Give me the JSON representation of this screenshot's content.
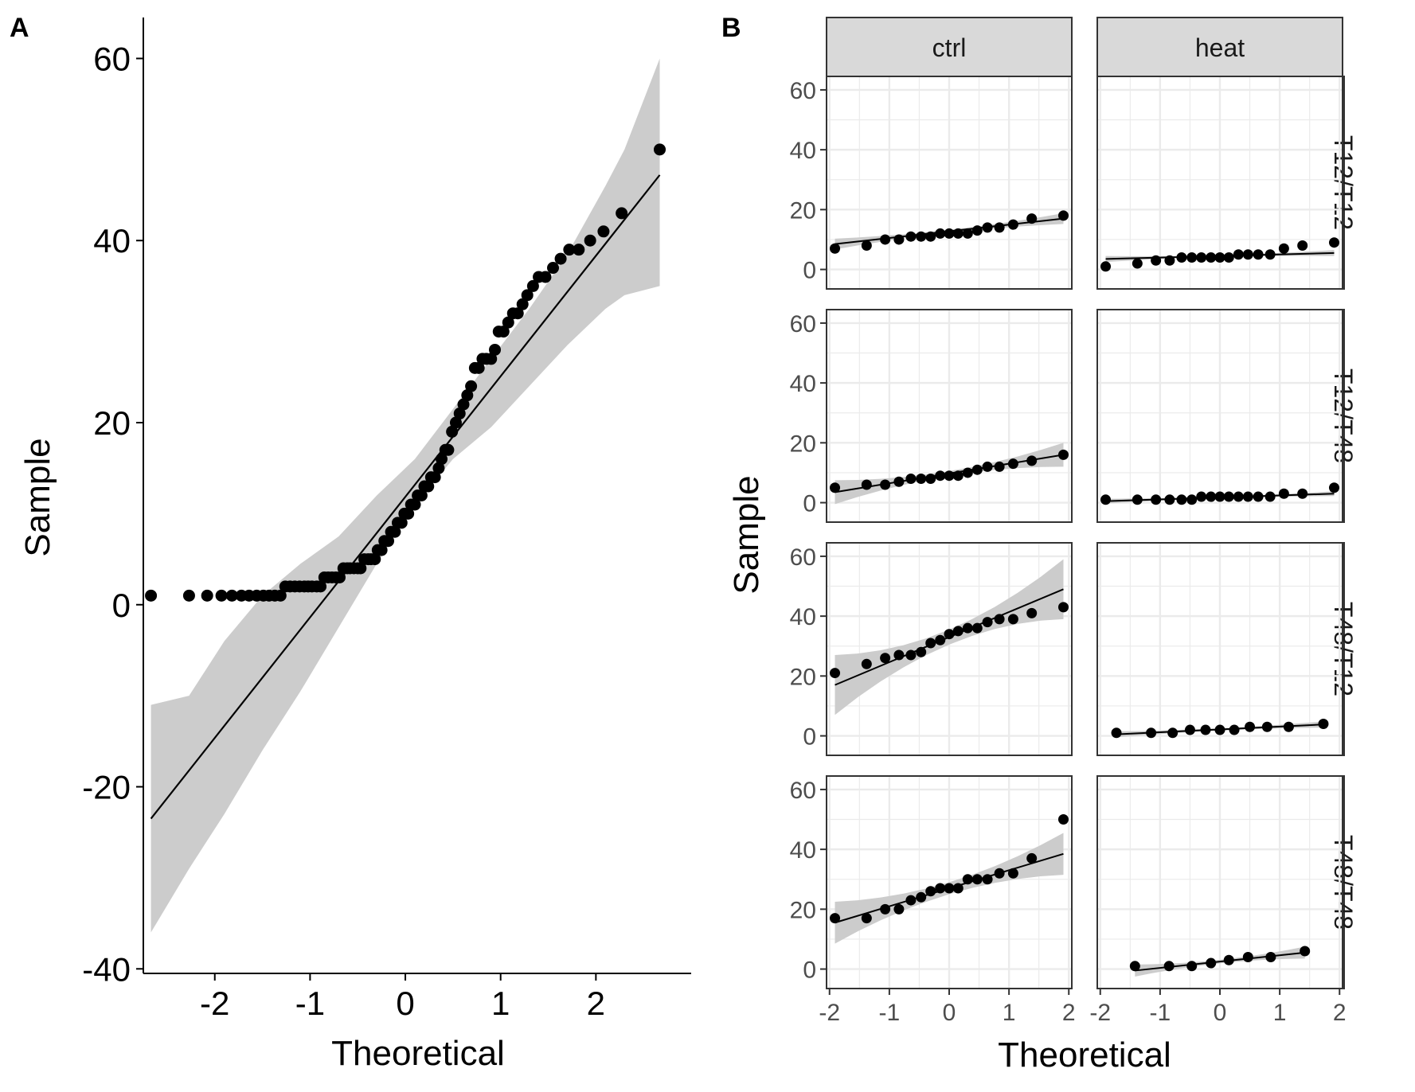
{
  "chart_data": [
    {
      "panel": "A",
      "type": "scatter",
      "xlabel": "Theoretical",
      "ylabel": "Sample",
      "xlim": [
        -2.75,
        3.0
      ],
      "ylim": [
        -40.5,
        64.5
      ],
      "x_ticks": [
        -2,
        -1,
        0,
        1,
        2
      ],
      "y_ticks": [
        -40,
        -20,
        0,
        20,
        40,
        60
      ],
      "grid": false,
      "colors": {
        "points": "#000000",
        "line": "#000000",
        "band": "#cccccc"
      },
      "points": [
        [
          -2.67,
          1
        ],
        [
          -2.27,
          1
        ],
        [
          -2.08,
          1
        ],
        [
          -1.93,
          1
        ],
        [
          -1.82,
          1
        ],
        [
          -1.72,
          1
        ],
        [
          -1.64,
          1
        ],
        [
          -1.56,
          1
        ],
        [
          -1.49,
          1
        ],
        [
          -1.43,
          1
        ],
        [
          -1.37,
          1
        ],
        [
          -1.31,
          1
        ],
        [
          -1.26,
          2
        ],
        [
          -1.21,
          2
        ],
        [
          -1.16,
          2
        ],
        [
          -1.11,
          2
        ],
        [
          -1.06,
          2
        ],
        [
          -1.02,
          2
        ],
        [
          -0.98,
          2
        ],
        [
          -0.93,
          2
        ],
        [
          -0.89,
          2
        ],
        [
          -0.85,
          3
        ],
        [
          -0.81,
          3
        ],
        [
          -0.77,
          3
        ],
        [
          -0.73,
          3
        ],
        [
          -0.69,
          3
        ],
        [
          -0.65,
          4
        ],
        [
          -0.61,
          4
        ],
        [
          -0.58,
          4
        ],
        [
          -0.54,
          4
        ],
        [
          -0.5,
          4
        ],
        [
          -0.47,
          4
        ],
        [
          -0.43,
          5
        ],
        [
          -0.39,
          5
        ],
        [
          -0.36,
          5
        ],
        [
          -0.32,
          5
        ],
        [
          -0.29,
          6
        ],
        [
          -0.25,
          6
        ],
        [
          -0.22,
          7
        ],
        [
          -0.18,
          7
        ],
        [
          -0.15,
          8
        ],
        [
          -0.11,
          8
        ],
        [
          -0.08,
          9
        ],
        [
          -0.04,
          9
        ],
        [
          -0.01,
          10
        ],
        [
          0.03,
          10
        ],
        [
          0.06,
          11
        ],
        [
          0.1,
          11
        ],
        [
          0.13,
          12
        ],
        [
          0.17,
          12
        ],
        [
          0.2,
          13
        ],
        [
          0.24,
          13
        ],
        [
          0.27,
          14
        ],
        [
          0.31,
          14
        ],
        [
          0.35,
          15
        ],
        [
          0.38,
          16
        ],
        [
          0.42,
          17
        ],
        [
          0.45,
          17
        ],
        [
          0.49,
          19
        ],
        [
          0.53,
          20
        ],
        [
          0.57,
          21
        ],
        [
          0.61,
          22
        ],
        [
          0.65,
          23
        ],
        [
          0.69,
          24
        ],
        [
          0.73,
          26
        ],
        [
          0.77,
          26
        ],
        [
          0.81,
          27
        ],
        [
          0.85,
          27
        ],
        [
          0.9,
          27
        ],
        [
          0.94,
          28
        ],
        [
          0.98,
          30
        ],
        [
          1.03,
          30
        ],
        [
          1.08,
          31
        ],
        [
          1.13,
          32
        ],
        [
          1.18,
          32
        ],
        [
          1.23,
          33
        ],
        [
          1.28,
          34
        ],
        [
          1.34,
          35
        ],
        [
          1.4,
          36
        ],
        [
          1.47,
          36
        ],
        [
          1.55,
          37
        ],
        [
          1.63,
          38
        ],
        [
          1.72,
          39
        ],
        [
          1.82,
          39
        ],
        [
          1.94,
          40
        ],
        [
          2.08,
          41
        ],
        [
          2.27,
          43
        ],
        [
          2.67,
          50
        ]
      ],
      "ref_line": {
        "x": [
          -2.67,
          2.67
        ],
        "y": [
          -23.5,
          47.2
        ]
      },
      "band": {
        "x": [
          -2.67,
          -2.27,
          -1.9,
          -1.5,
          -1.1,
          -0.7,
          -0.3,
          0.1,
          0.5,
          0.9,
          1.3,
          1.7,
          2.1,
          2.3,
          2.67
        ],
        "upper": [
          -11,
          -10,
          -4,
          1,
          4.5,
          7.5,
          12,
          16,
          21.5,
          27,
          32.5,
          38.5,
          46,
          50,
          60
        ],
        "lower": [
          -36,
          -29,
          -23,
          -16,
          -9.5,
          -2.5,
          4.5,
          11,
          16,
          19.5,
          24,
          28.5,
          32.5,
          34,
          35
        ]
      }
    },
    {
      "panel": "B",
      "type": "scatter",
      "xlabel": "Theoretical",
      "ylabel": "Sample",
      "facet_columns": [
        "ctrl",
        "heat"
      ],
      "facet_rows": [
        "T12/T12",
        "T12/T48",
        "T48/T12",
        "T48/T48"
      ],
      "xlim": [
        -2.05,
        2.05
      ],
      "ylim": [
        -6.5,
        64.5
      ],
      "x_ticks": [
        -2,
        -1,
        0,
        1,
        2
      ],
      "y_ticks": [
        0,
        20,
        40,
        60
      ],
      "grid": true,
      "colors": {
        "points": "#000000",
        "line": "#000000",
        "band": "#cccccc",
        "strip": "#d9d9d9",
        "grid": "#ebebeb"
      },
      "facets": [
        {
          "row": "T12/T12",
          "col": "ctrl",
          "points": [
            [
              -1.91,
              7
            ],
            [
              -1.38,
              8
            ],
            [
              -1.07,
              10
            ],
            [
              -0.84,
              10
            ],
            [
              -0.64,
              11
            ],
            [
              -0.47,
              11
            ],
            [
              -0.31,
              11
            ],
            [
              -0.15,
              12
            ],
            [
              0,
              12
            ],
            [
              0.15,
              12
            ],
            [
              0.31,
              12
            ],
            [
              0.47,
              13
            ],
            [
              0.64,
              14
            ],
            [
              0.84,
              14
            ],
            [
              1.07,
              15
            ],
            [
              1.38,
              17
            ],
            [
              1.91,
              18
            ]
          ],
          "line": [
            [
              -1.91,
              8.5
            ],
            [
              1.91,
              17
            ]
          ],
          "band_half": [
            1.8,
            0.5,
            2
          ]
        },
        {
          "row": "T12/T12",
          "col": "heat",
          "points": [
            [
              -1.91,
              1
            ],
            [
              -1.38,
              2
            ],
            [
              -1.07,
              3
            ],
            [
              -0.84,
              3
            ],
            [
              -0.64,
              4
            ],
            [
              -0.47,
              4
            ],
            [
              -0.31,
              4
            ],
            [
              -0.15,
              4
            ],
            [
              0,
              4
            ],
            [
              0.15,
              4
            ],
            [
              0.31,
              5
            ],
            [
              0.47,
              5
            ],
            [
              0.64,
              5
            ],
            [
              0.84,
              5
            ],
            [
              1.07,
              7
            ],
            [
              1.38,
              8
            ],
            [
              1.91,
              9
            ]
          ],
          "line": [
            [
              -1.91,
              3.5
            ],
            [
              1.91,
              5.5
            ]
          ],
          "band_half": [
            1,
            0.3,
            1
          ]
        },
        {
          "row": "T12/T48",
          "col": "ctrl",
          "points": [
            [
              -1.91,
              5
            ],
            [
              -1.38,
              6
            ],
            [
              -1.07,
              6
            ],
            [
              -0.84,
              7
            ],
            [
              -0.64,
              8
            ],
            [
              -0.47,
              8
            ],
            [
              -0.31,
              8
            ],
            [
              -0.15,
              9
            ],
            [
              0,
              9
            ],
            [
              0.15,
              9
            ],
            [
              0.31,
              10
            ],
            [
              0.47,
              11
            ],
            [
              0.64,
              12
            ],
            [
              0.84,
              12
            ],
            [
              1.07,
              13
            ],
            [
              1.38,
              14
            ],
            [
              1.91,
              16
            ]
          ],
          "line": [
            [
              -1.91,
              3.5
            ],
            [
              1.91,
              16
            ]
          ],
          "band_half": [
            4,
            0.8,
            4
          ]
        },
        {
          "row": "T12/T48",
          "col": "heat",
          "points": [
            [
              -1.91,
              1
            ],
            [
              -1.38,
              1
            ],
            [
              -1.07,
              1
            ],
            [
              -0.84,
              1
            ],
            [
              -0.64,
              1
            ],
            [
              -0.47,
              1
            ],
            [
              -0.31,
              2
            ],
            [
              -0.15,
              2
            ],
            [
              0,
              2
            ],
            [
              0.15,
              2
            ],
            [
              0.31,
              2
            ],
            [
              0.47,
              2
            ],
            [
              0.64,
              2
            ],
            [
              0.84,
              2
            ],
            [
              1.07,
              3
            ],
            [
              1.38,
              3
            ],
            [
              1.91,
              5
            ]
          ],
          "line": [
            [
              -1.91,
              0.5
            ],
            [
              1.91,
              3
            ]
          ],
          "band_half": [
            0.8,
            0.3,
            0.8
          ]
        },
        {
          "row": "T48/T12",
          "col": "ctrl",
          "points": [
            [
              -1.91,
              21
            ],
            [
              -1.38,
              24
            ],
            [
              -1.07,
              26
            ],
            [
              -0.84,
              27
            ],
            [
              -0.64,
              27
            ],
            [
              -0.47,
              28
            ],
            [
              -0.31,
              31
            ],
            [
              -0.15,
              32
            ],
            [
              0,
              34
            ],
            [
              0.15,
              35
            ],
            [
              0.31,
              36
            ],
            [
              0.47,
              36
            ],
            [
              0.64,
              38
            ],
            [
              0.84,
              39
            ],
            [
              1.07,
              39
            ],
            [
              1.38,
              41
            ],
            [
              1.91,
              43
            ]
          ],
          "line": [
            [
              -1.91,
              17
            ],
            [
              1.91,
              49
            ]
          ],
          "band_half": [
            10,
            2.5,
            10
          ]
        },
        {
          "row": "T48/T12",
          "col": "heat",
          "points": [
            [
              -1.73,
              1
            ],
            [
              -1.15,
              1
            ],
            [
              -0.79,
              1
            ],
            [
              -0.5,
              2
            ],
            [
              -0.24,
              2
            ],
            [
              0,
              2
            ],
            [
              0.24,
              2
            ],
            [
              0.5,
              3
            ],
            [
              0.79,
              3
            ],
            [
              1.15,
              3
            ],
            [
              1.73,
              4
            ]
          ],
          "line": [
            [
              -1.73,
              0.5
            ],
            [
              1.73,
              3.8
            ]
          ],
          "band_half": [
            1,
            0.4,
            1
          ]
        },
        {
          "row": "T48/T48",
          "col": "ctrl",
          "points": [
            [
              -1.91,
              17
            ],
            [
              -1.38,
              17
            ],
            [
              -1.07,
              20
            ],
            [
              -0.84,
              20
            ],
            [
              -0.64,
              23
            ],
            [
              -0.47,
              24
            ],
            [
              -0.31,
              26
            ],
            [
              -0.15,
              27
            ],
            [
              0,
              27
            ],
            [
              0.15,
              27
            ],
            [
              0.31,
              30
            ],
            [
              0.47,
              30
            ],
            [
              0.64,
              30
            ],
            [
              0.84,
              32
            ],
            [
              1.07,
              32
            ],
            [
              1.38,
              37
            ],
            [
              1.91,
              50
            ]
          ],
          "line": [
            [
              -1.91,
              15.5
            ],
            [
              1.91,
              38.5
            ]
          ],
          "band_half": [
            7,
            2,
            7
          ]
        },
        {
          "row": "T48/T48",
          "col": "heat",
          "points": [
            [
              -1.42,
              1
            ],
            [
              -0.85,
              1
            ],
            [
              -0.47,
              1
            ],
            [
              -0.15,
              2
            ],
            [
              0.15,
              3
            ],
            [
              0.47,
              4
            ],
            [
              0.85,
              4
            ],
            [
              1.42,
              6
            ]
          ],
          "line": [
            [
              -1.42,
              -0.5
            ],
            [
              1.42,
              5.5
            ]
          ],
          "band_half": [
            2,
            0.6,
            2
          ]
        }
      ]
    }
  ]
}
